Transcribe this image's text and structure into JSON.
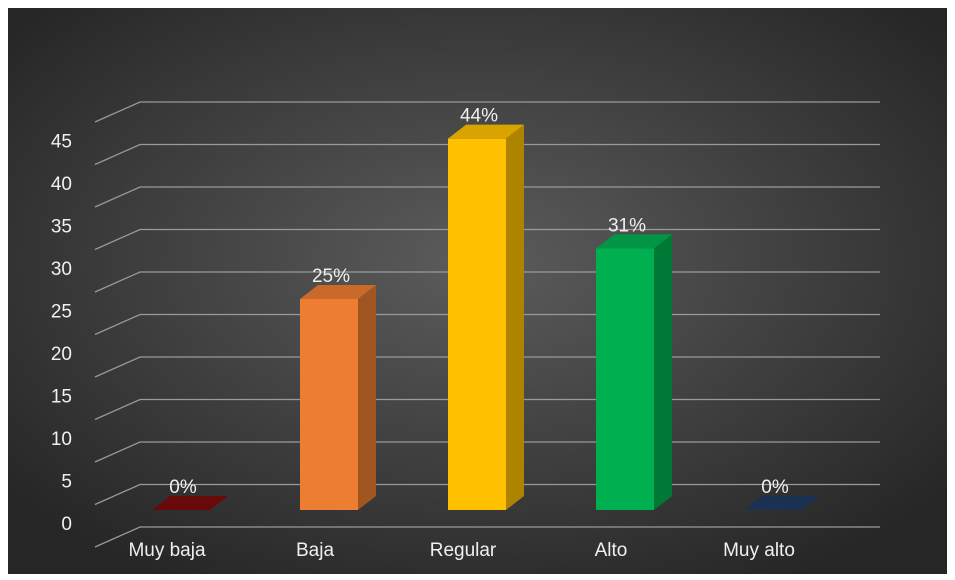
{
  "chart_data": {
    "type": "bar3d",
    "categories": [
      "Muy baja",
      "Baja",
      "Regular",
      "Alto",
      "Muy alto"
    ],
    "values": [
      0,
      25,
      44,
      31,
      0
    ],
    "value_labels": [
      "0%",
      "25%",
      "44%",
      "31%",
      "0%"
    ],
    "colors": [
      "#7a0c0c",
      "#ed7d31",
      "#ffc000",
      "#00b050",
      "#1f3a5f"
    ],
    "ylim": [
      0,
      50
    ],
    "yticks": [
      0,
      5,
      10,
      15,
      20,
      25,
      30,
      35,
      40,
      45
    ],
    "grid": true
  }
}
